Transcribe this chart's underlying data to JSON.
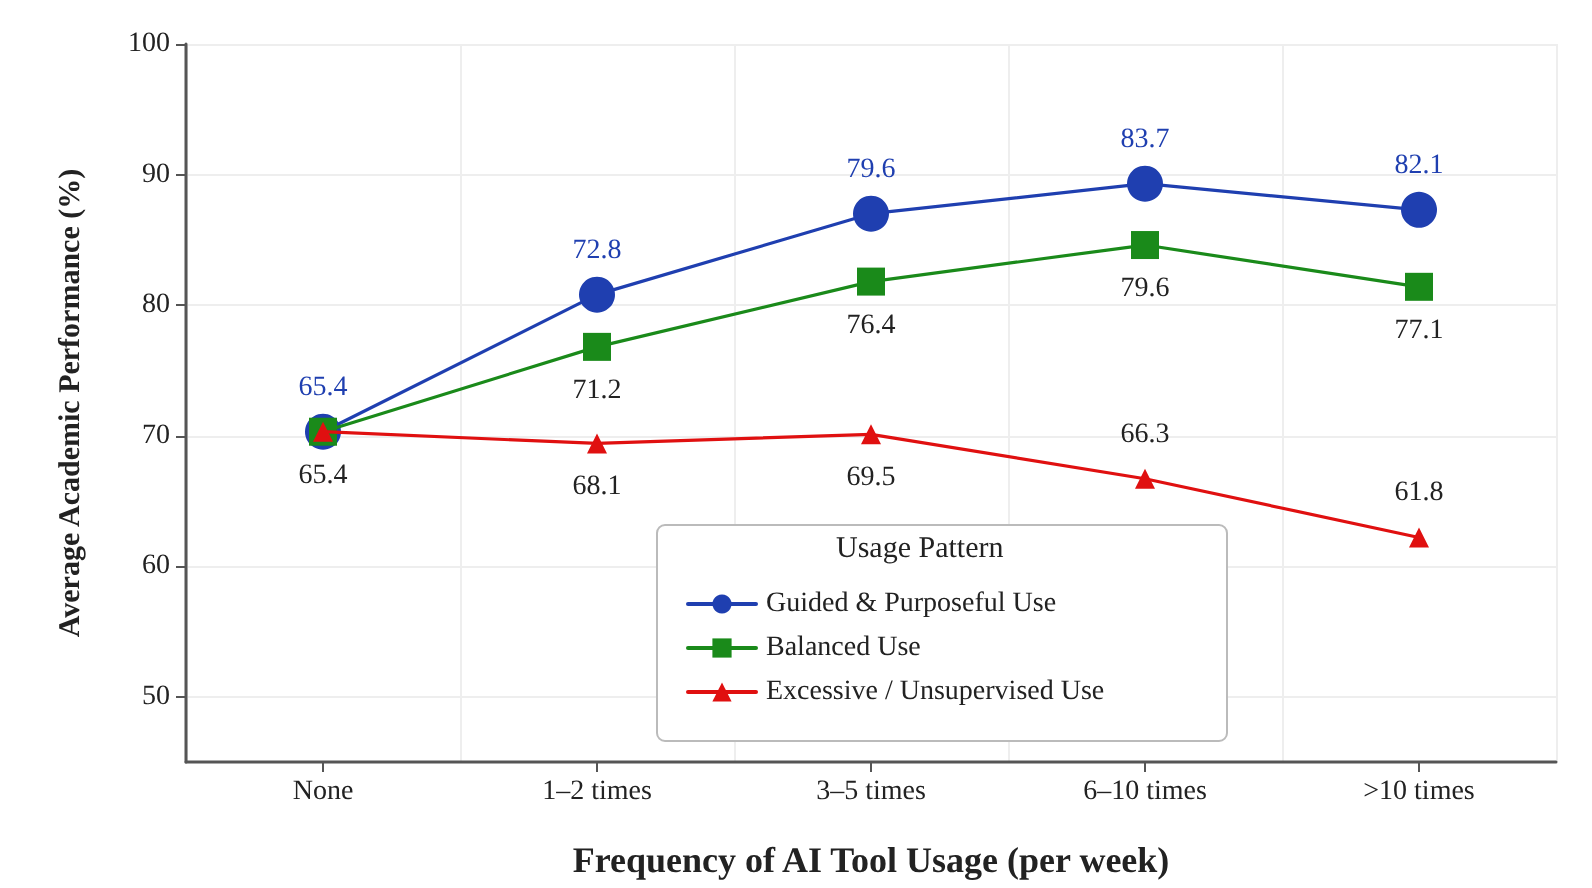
{
  "chart_data": {
    "type": "line",
    "xlabel": "Frequency of AI Tool Usage (per week)",
    "ylabel": "Average Academic Performance (%)",
    "legend_title": "Usage Pattern",
    "categories": [
      "None",
      "1–2 times",
      "3–5 times",
      "6–10 times",
      ">10 times"
    ],
    "series": [
      {
        "name": "Guided & Purposeful Use",
        "color": "#1f3fb0",
        "marker": "circle",
        "values": [
          70.3,
          80.8,
          87.0,
          89.3,
          87.3
        ]
      },
      {
        "name": "Balanced Use",
        "color": "#1a8a1a",
        "marker": "square",
        "values": [
          70.3,
          76.8,
          81.8,
          84.6,
          81.4
        ]
      },
      {
        "name": "Excessive / Unsupervised Use",
        "color": "#e01010",
        "marker": "triangle",
        "values": [
          70.3,
          69.4,
          70.1,
          66.7,
          62.2
        ]
      }
    ],
    "annotations": [
      {
        "text": "65.4",
        "x": "None",
        "y": 70.3
      },
      {
        "text": "72.8",
        "x": "1–2 times",
        "y": 80.8
      },
      {
        "text": "79.6",
        "x": "3–5 times",
        "y": 87.0
      },
      {
        "text": "83.7",
        "x": "6–10 times",
        "y": 89.3
      },
      {
        "text": "82.1",
        "x": ">10 times",
        "y": 87.3
      },
      {
        "text": "65.4",
        "x": "None",
        "y": 70.3
      },
      {
        "text": "71.2",
        "x": "1–2 times",
        "y": 76.8
      },
      {
        "text": "76.4",
        "x": "3–5 times",
        "y": 81.8
      },
      {
        "text": "79.6",
        "x": "6–10 times",
        "y": 84.6
      },
      {
        "text": "77.1",
        "x": ">10 times",
        "y": 81.4
      },
      {
        "text": "68.1",
        "x": "1–2 times",
        "y": 69.4
      },
      {
        "text": "69.5",
        "x": "3–5 times",
        "y": 70.1
      },
      {
        "text": "66.3",
        "x": "6–10 times",
        "y": 66.7
      },
      {
        "text": "61.8",
        "x": ">10 times",
        "y": 62.2
      }
    ],
    "ylim": [
      45,
      100
    ],
    "yticks": [
      50,
      60,
      70,
      80,
      90,
      100
    ],
    "grid": true,
    "legend": "bottom",
    "line_style": "solid"
  }
}
